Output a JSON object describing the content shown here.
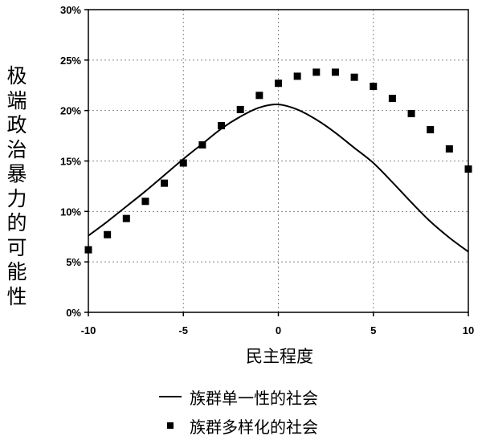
{
  "chart_data": {
    "type": "line",
    "title": "",
    "xlabel": "民主程度",
    "ylabel": "极端政治暴力的可能性",
    "xlim": [
      -10,
      10
    ],
    "ylim": [
      0,
      30
    ],
    "x_ticks": [
      "-10",
      "-5",
      "0",
      "5",
      "10"
    ],
    "y_ticks": [
      "0%",
      "5%",
      "10%",
      "15%",
      "20%",
      "25%",
      "30%"
    ],
    "grid": true,
    "legend_position": "bottom",
    "series": [
      {
        "name": "族群单一性的社会",
        "style": "line",
        "x": [
          -10,
          -9,
          -8,
          -7,
          -6,
          -5,
          -4,
          -3,
          -2,
          -1,
          0,
          1,
          2,
          3,
          4,
          5,
          6,
          7,
          8,
          9,
          10
        ],
        "y": [
          7.6,
          9.0,
          10.5,
          12.0,
          13.6,
          15.2,
          16.7,
          18.2,
          19.4,
          20.3,
          20.6,
          20.1,
          19.1,
          17.8,
          16.3,
          14.8,
          12.9,
          10.9,
          9.0,
          7.4,
          6.0
        ]
      },
      {
        "name": "族群多样化的社会",
        "style": "markers",
        "x": [
          -10,
          -9,
          -8,
          -7,
          -6,
          -5,
          -4,
          -3,
          -2,
          -1,
          0,
          1,
          2,
          3,
          4,
          5,
          6,
          7,
          8,
          9,
          10
        ],
        "y": [
          6.2,
          7.7,
          9.3,
          11.0,
          12.8,
          14.8,
          16.6,
          18.5,
          20.1,
          21.5,
          22.7,
          23.4,
          23.8,
          23.8,
          23.3,
          22.4,
          21.2,
          19.7,
          18.1,
          16.2,
          14.2
        ]
      }
    ]
  }
}
